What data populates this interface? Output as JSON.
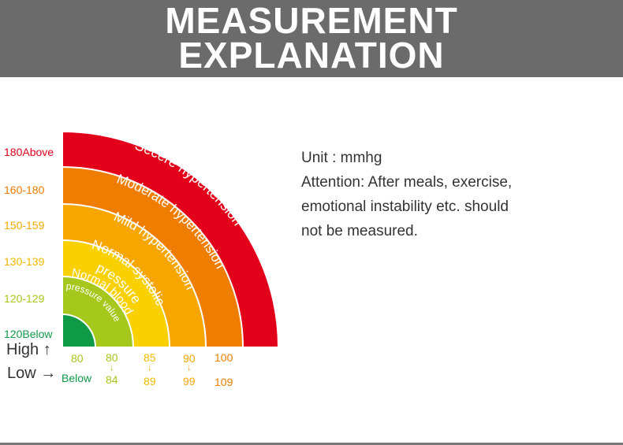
{
  "header": {
    "title_line1": "MEASUREMENT",
    "title_line2": "EXPLANATION"
  },
  "colors": {
    "header_bg": "#6b6b6b",
    "severe": "#e3001b",
    "moderate": "#ef7d00",
    "mild": "#f7a600",
    "normal_systolic": "#f9d100",
    "normal_blood": "#a6c71c",
    "below": "#0f9a48"
  },
  "systolic_labels": [
    "180Above",
    "160-180",
    "150-159",
    "130-139",
    "120-129",
    "120Below"
  ],
  "bands": [
    {
      "label": "Secere hypertension"
    },
    {
      "label": "Moderate hypertension"
    },
    {
      "label": "Mild hypertension"
    },
    {
      "label_line1": "Normal systolic",
      "label_line2": "pressure"
    },
    {
      "label_line1": "Normal blood",
      "label_line2": "pressure value"
    }
  ],
  "legend": {
    "high": "High",
    "high_arrow": "↑",
    "low": "Low",
    "low_arrow": "→"
  },
  "diastolic": {
    "col1_top": "80",
    "col1_bottom": "Below",
    "col2_top": "80",
    "col2_bottom": "84",
    "col3_top": "85",
    "col3_bottom": "89",
    "col4_top": "90",
    "col4_bottom": "99",
    "col5_top": "100",
    "col5_bottom": "109",
    "arrow": "↓"
  },
  "info": {
    "unit": "Unit : mmhg",
    "attention_line1": "Attention: After meals, exercise,",
    "attention_line2": "emotional instability etc. should",
    "attention_line3": "not be measured."
  }
}
